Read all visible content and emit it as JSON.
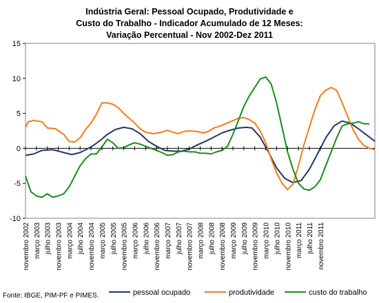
{
  "chart_data": {
    "type": "line",
    "title_lines": [
      "Indústria Geral: Pessoal Ocupado, Produtividade e",
      "Custo do Trabalho - Indicador Acumulado de 12 Meses:",
      "Variação Percentual - Nov 2002-Dez 2011"
    ],
    "source": "Fonte: IBGE, PIM-PF e PIMES.",
    "ylim": [
      -10,
      15
    ],
    "yticks": [
      "15",
      "10",
      "5",
      "0",
      "-5",
      "-10"
    ],
    "ytick_values": [
      15,
      10,
      5,
      0,
      -5,
      -10
    ],
    "grid": false,
    "legend_position": "bottom",
    "x_labels": [
      "novembro 2002",
      "março 2003",
      "julho 2003",
      "novembro 2003",
      "março 2004",
      "julho 2004",
      "novembro 2004",
      "março 2005",
      "julho 2005",
      "novembro 2005",
      "março 2006",
      "julho 2006",
      "novembro 2006",
      "março 2007",
      "julho 2007",
      "novembro 2007",
      "março 2008",
      "julho 2008",
      "novembro 2008",
      "março 2009",
      "julho 2009",
      "novembro 2009",
      "março 2010",
      "julho 2010",
      "novembro 2010",
      "março 2011",
      "julho 2011",
      "novembro 2011"
    ],
    "x_label_month_index": [
      0,
      4,
      8,
      12,
      16,
      20,
      24,
      28,
      32,
      36,
      40,
      44,
      48,
      52,
      56,
      60,
      64,
      68,
      72,
      76,
      80,
      84,
      88,
      92,
      96,
      100,
      104,
      108
    ],
    "months_total": 110,
    "series": [
      {
        "name": "pessoal ocupado",
        "color": "#1f3864",
        "points": [
          [
            0,
            -1.0
          ],
          [
            3,
            -0.8
          ],
          [
            6,
            -0.3
          ],
          [
            10,
            -0.2
          ],
          [
            14,
            -0.6
          ],
          [
            17,
            -0.9
          ],
          [
            20,
            -0.6
          ],
          [
            24,
            0.2
          ],
          [
            27,
            1.0
          ],
          [
            30,
            2.0
          ],
          [
            33,
            2.7
          ],
          [
            36,
            3.0
          ],
          [
            39,
            2.8
          ],
          [
            42,
            2.1
          ],
          [
            45,
            1.0
          ],
          [
            48,
            0.3
          ],
          [
            51,
            -0.3
          ],
          [
            54,
            -0.4
          ],
          [
            57,
            -0.4
          ],
          [
            60,
            -0.1
          ],
          [
            63,
            0.5
          ],
          [
            66,
            1.0
          ],
          [
            69,
            1.6
          ],
          [
            72,
            2.2
          ],
          [
            75,
            2.6
          ],
          [
            78,
            2.9
          ],
          [
            81,
            3.0
          ],
          [
            83,
            2.9
          ],
          [
            86,
            1.6
          ],
          [
            89,
            -0.5
          ],
          [
            92,
            -2.8
          ],
          [
            95,
            -4.3
          ],
          [
            98,
            -4.9
          ],
          [
            101,
            -4.6
          ],
          [
            104,
            -3.0
          ],
          [
            107,
            -0.8
          ],
          [
            110,
            1.5
          ],
          [
            113,
            3.2
          ],
          [
            116,
            3.9
          ],
          [
            119,
            3.6
          ],
          [
            122,
            2.8
          ],
          [
            125,
            1.9
          ],
          [
            128,
            1.0
          ]
        ]
      },
      {
        "name": "produtividade",
        "color": "#f07d1a",
        "points": [
          [
            0,
            3.0
          ],
          [
            1,
            3.8
          ],
          [
            3,
            4.0
          ],
          [
            6,
            3.8
          ],
          [
            8,
            2.9
          ],
          [
            11,
            2.8
          ],
          [
            14,
            2.0
          ],
          [
            16,
            1.0
          ],
          [
            18,
            0.9
          ],
          [
            20,
            1.5
          ],
          [
            22,
            2.7
          ],
          [
            24,
            3.6
          ],
          [
            26,
            4.9
          ],
          [
            28,
            6.5
          ],
          [
            30,
            6.5
          ],
          [
            32,
            6.3
          ],
          [
            34,
            5.8
          ],
          [
            36,
            5.0
          ],
          [
            38,
            4.3
          ],
          [
            40,
            3.6
          ],
          [
            42,
            2.8
          ],
          [
            44,
            2.3
          ],
          [
            47,
            2.1
          ],
          [
            50,
            2.3
          ],
          [
            52,
            2.6
          ],
          [
            54,
            2.3
          ],
          [
            56,
            2.1
          ],
          [
            58,
            2.4
          ],
          [
            60,
            2.5
          ],
          [
            63,
            2.4
          ],
          [
            65,
            2.2
          ],
          [
            67,
            2.4
          ],
          [
            69,
            2.9
          ],
          [
            72,
            3.3
          ],
          [
            75,
            3.8
          ],
          [
            78,
            4.3
          ],
          [
            80,
            4.4
          ],
          [
            82,
            4.1
          ],
          [
            84,
            3.6
          ],
          [
            86,
            2.5
          ],
          [
            88,
            0.8
          ],
          [
            90,
            -1.5
          ],
          [
            92,
            -3.5
          ],
          [
            94,
            -5.0
          ],
          [
            96,
            -5.9
          ],
          [
            98,
            -5.1
          ],
          [
            100,
            -2.5
          ],
          [
            102,
            0.5
          ],
          [
            104,
            3.0
          ],
          [
            106,
            5.5
          ],
          [
            108,
            7.5
          ],
          [
            110,
            8.3
          ],
          [
            112,
            8.7
          ],
          [
            114,
            8.3
          ],
          [
            116,
            6.5
          ],
          [
            118,
            4.6
          ],
          [
            120,
            2.7
          ],
          [
            122,
            1.3
          ],
          [
            124,
            0.4
          ],
          [
            126,
            0.0
          ],
          [
            128,
            -0.2
          ]
        ]
      },
      {
        "name": "custo do trabalho",
        "color": "#1a8a1a",
        "points": [
          [
            0,
            -4.0
          ],
          [
            2,
            -6.2
          ],
          [
            4,
            -6.8
          ],
          [
            6,
            -7.0
          ],
          [
            8,
            -6.5
          ],
          [
            10,
            -7.0
          ],
          [
            12,
            -6.8
          ],
          [
            14,
            -6.5
          ],
          [
            16,
            -5.5
          ],
          [
            18,
            -4.0
          ],
          [
            20,
            -2.5
          ],
          [
            22,
            -1.5
          ],
          [
            24,
            -0.8
          ],
          [
            26,
            -0.8
          ],
          [
            28,
            0.2
          ],
          [
            30,
            1.3
          ],
          [
            32,
            0.8
          ],
          [
            34,
            0.0
          ],
          [
            36,
            0.1
          ],
          [
            38,
            0.5
          ],
          [
            40,
            0.8
          ],
          [
            42,
            0.6
          ],
          [
            44,
            0.3
          ],
          [
            46,
            0.0
          ],
          [
            48,
            -0.3
          ],
          [
            50,
            -0.6
          ],
          [
            52,
            -1.0
          ],
          [
            54,
            -0.9
          ],
          [
            56,
            -0.5
          ],
          [
            58,
            -0.4
          ],
          [
            60,
            -0.5
          ],
          [
            62,
            -0.5
          ],
          [
            64,
            -0.7
          ],
          [
            66,
            -0.7
          ],
          [
            68,
            -0.8
          ],
          [
            70,
            -0.5
          ],
          [
            72,
            -0.3
          ],
          [
            74,
            0.3
          ],
          [
            76,
            2.0
          ],
          [
            78,
            4.0
          ],
          [
            80,
            6.0
          ],
          [
            82,
            7.5
          ],
          [
            84,
            8.7
          ],
          [
            86,
            9.9
          ],
          [
            88,
            10.2
          ],
          [
            90,
            9.2
          ],
          [
            92,
            6.5
          ],
          [
            94,
            3.0
          ],
          [
            96,
            -0.5
          ],
          [
            98,
            -3.0
          ],
          [
            100,
            -5.0
          ],
          [
            102,
            -5.8
          ],
          [
            104,
            -6.0
          ],
          [
            106,
            -5.5
          ],
          [
            108,
            -4.5
          ],
          [
            110,
            -2.5
          ],
          [
            112,
            -0.5
          ],
          [
            114,
            1.5
          ],
          [
            116,
            3.2
          ],
          [
            118,
            3.5
          ],
          [
            120,
            3.6
          ],
          [
            122,
            3.8
          ],
          [
            124,
            3.5
          ],
          [
            126,
            3.5
          ]
        ]
      }
    ]
  }
}
